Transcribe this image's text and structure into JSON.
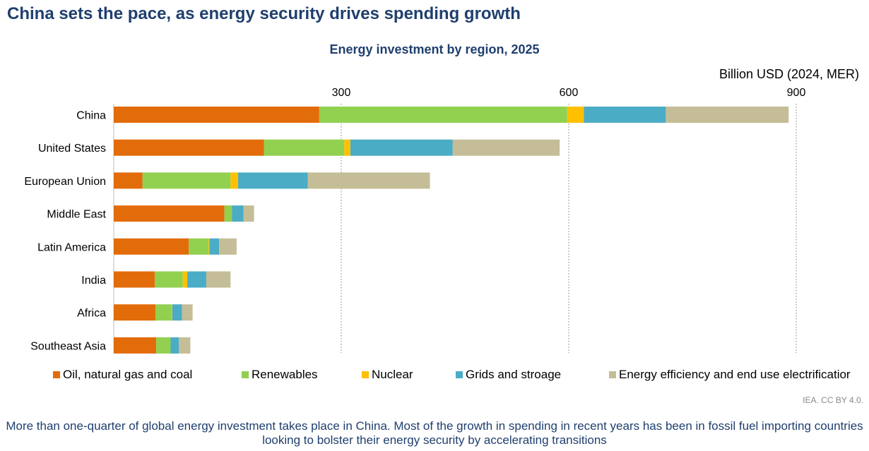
{
  "header": {
    "title": "China sets the pace, as energy security drives spending growth",
    "credit": "IEA. CC BY 4.0.",
    "caption": "More than one-quarter of global energy investment takes place in China. Most of the growth in spending in recent years has been in fossil fuel importing countries looking to bolster their energy security by accelerating transitions"
  },
  "chart_data": {
    "type": "bar",
    "orientation": "horizontal",
    "stacked": true,
    "title": "Energy investment by region, 2025",
    "unit_label": "Billion USD (2024, MER)",
    "xlim": [
      0,
      900
    ],
    "ticks": [
      300,
      600,
      900
    ],
    "grid": "vertical dotted",
    "legend_position": "bottom",
    "categories": [
      "China",
      "United States",
      "European Union",
      "Middle East",
      "Latin America",
      "India",
      "Africa",
      "Southeast Asia"
    ],
    "series": [
      {
        "name": "Oil, natural gas and coal",
        "color": "#e36c0a",
        "values": [
          271,
          198,
          38,
          146,
          99,
          54,
          55,
          56
        ]
      },
      {
        "name": "Renewables",
        "color": "#92d050",
        "values": [
          327,
          106,
          116,
          10,
          26,
          37,
          21,
          19
        ]
      },
      {
        "name": "Nuclear",
        "color": "#ffc000",
        "values": [
          22,
          8,
          10,
          0,
          1,
          6,
          1,
          0
        ]
      },
      {
        "name": "Grids and stroage",
        "color": "#4bacc6",
        "values": [
          108,
          135,
          92,
          15,
          13,
          25,
          13,
          11
        ]
      },
      {
        "name": "Energy efficiency and end use electrificatior",
        "color": "#c4bd97",
        "values": [
          162,
          141,
          161,
          14,
          23,
          32,
          14,
          15
        ]
      }
    ]
  }
}
